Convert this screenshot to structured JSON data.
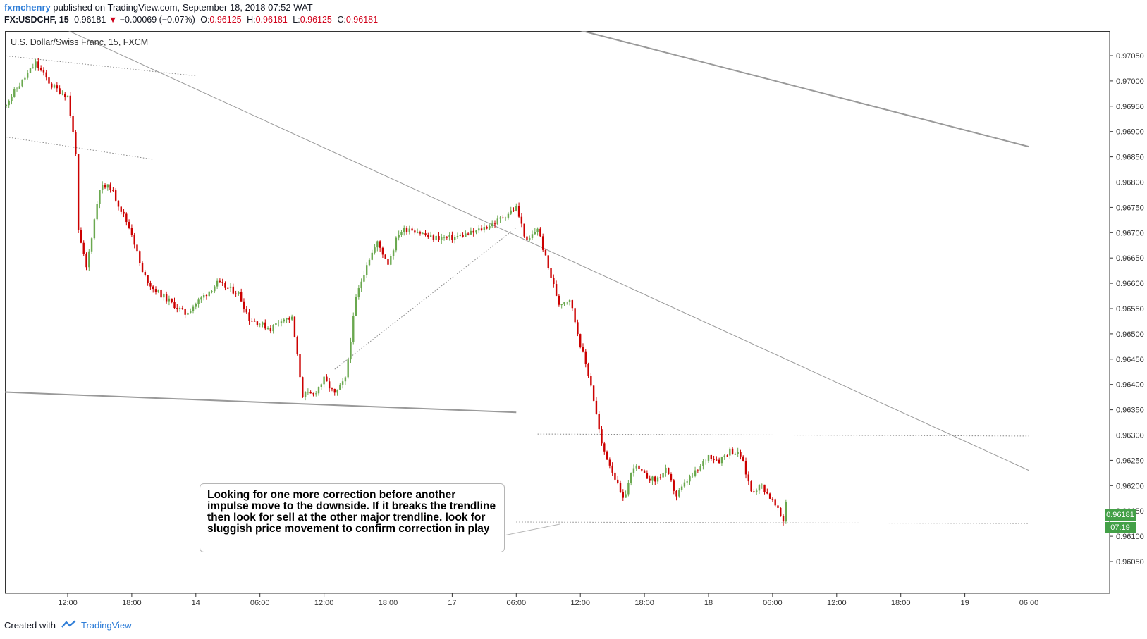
{
  "header": {
    "author": "fxmchenry",
    "published_text": "published on TradingView.com, September 18, 2018 07:52 WAT",
    "symbol": "FX:USDCHF, 15",
    "last": "0.96181",
    "change": "−0.00069 (−0.07%)",
    "open_label": "O:",
    "open": "0.96125",
    "high_label": "H:",
    "high": "0.96181",
    "low_label": "L:",
    "low": "0.96125",
    "close_label": "C:",
    "close": "0.96181"
  },
  "series_title": "U.S. Dollar/Swiss Franc, 15, FXCM",
  "annotation": {
    "text": "Looking for one more correction before another impulse move to the downside. If it breaks the trendline then look for sell at the other major trendline. look for sluggish price movement to confirm correction in play"
  },
  "price_tag": "0.96181",
  "time_tag": "07:19",
  "footer": {
    "created_with": "Created with",
    "brand": "TradingView"
  },
  "colors": {
    "up": "#6aa84f",
    "down": "#cc0000",
    "trendline": "#999999",
    "accent": "#2f7ed8",
    "tag": "#43a047"
  },
  "chart_data": {
    "type": "candlestick",
    "title": "U.S. Dollar/Swiss Franc, 15, FXCM",
    "y_ticks": [
      "0.97050",
      "0.97000",
      "0.96950",
      "0.96900",
      "0.96850",
      "0.96800",
      "0.96750",
      "0.96700",
      "0.96650",
      "0.96600",
      "0.96550",
      "0.96500",
      "0.96450",
      "0.96400",
      "0.96350",
      "0.96300",
      "0.96250",
      "0.96200",
      "0.96150",
      "0.96100",
      "0.96050"
    ],
    "ylim": [
      0.96017,
      0.97088
    ],
    "x_tick_labels": [
      "12:00",
      "18:00",
      "14",
      "06:00",
      "12:00",
      "18:00",
      "17",
      "06:00",
      "12:00",
      "18:00",
      "18",
      "06:00",
      "12:00",
      "18:00",
      "19",
      "06:00"
    ],
    "price_path": [
      [
        "13 06:00",
        0.9695
      ],
      [
        "13 09:00",
        0.97035
      ],
      [
        "13 10:30",
        0.9699
      ],
      [
        "13 12:00",
        0.9697
      ],
      [
        "13 12:45",
        0.9686
      ],
      [
        "13 13:00",
        0.967
      ],
      [
        "13 13:45",
        0.9663
      ],
      [
        "13 15:00",
        0.9679
      ],
      [
        "13 16:00",
        0.9679
      ],
      [
        "13 18:00",
        0.967
      ],
      [
        "13 19:00",
        0.9662
      ],
      [
        "13 20:00",
        0.9659
      ],
      [
        "13 23:00",
        0.9654
      ],
      [
        "14 02:00",
        0.966
      ],
      [
        "14 04:00",
        0.9658
      ],
      [
        "14 05:00",
        0.9653
      ],
      [
        "14 07:00",
        0.9651
      ],
      [
        "14 08:00",
        0.9653
      ],
      [
        "14 09:00",
        0.9653
      ],
      [
        "14 10:00",
        0.9638
      ],
      [
        "14 11:00",
        0.9638
      ],
      [
        "14 12:00",
        0.9641
      ],
      [
        "14 13:00",
        0.9638
      ],
      [
        "14 14:00",
        0.9641
      ],
      [
        "14 15:00",
        0.9657
      ],
      [
        "14 16:00",
        0.9664
      ],
      [
        "14 17:00",
        0.9668
      ],
      [
        "14 18:00",
        0.9664
      ],
      [
        "14 19:00",
        0.967
      ],
      [
        "14 20:00",
        0.9671
      ],
      [
        "14 21:00",
        0.967
      ],
      [
        "14 22:00",
        0.9669
      ],
      [
        "17 00:00",
        0.9669
      ],
      [
        "17 02:00",
        0.967
      ],
      [
        "17 04:00",
        0.9672
      ],
      [
        "17 06:00",
        0.9675
      ],
      [
        "17 07:00",
        0.9668
      ],
      [
        "17 08:00",
        0.9671
      ],
      [
        "17 09:00",
        0.9663
      ],
      [
        "17 10:00",
        0.9656
      ],
      [
        "17 11:00",
        0.9657
      ],
      [
        "17 12:00",
        0.9648
      ],
      [
        "17 13:00",
        0.964
      ],
      [
        "17 14:00",
        0.9628
      ],
      [
        "17 15:00",
        0.9623
      ],
      [
        "17 16:00",
        0.9617
      ],
      [
        "17 17:00",
        0.9624
      ],
      [
        "17 18:00",
        0.9622
      ],
      [
        "17 19:00",
        0.9621
      ],
      [
        "17 20:00",
        0.9623
      ],
      [
        "17 21:00",
        0.9618
      ],
      [
        "17 22:00",
        0.9621
      ],
      [
        "17 23:00",
        0.9623
      ],
      [
        "18 00:00",
        0.9626
      ],
      [
        "18 01:00",
        0.9625
      ],
      [
        "18 02:00",
        0.9627
      ],
      [
        "18 03:00",
        0.9626
      ],
      [
        "18 04:00",
        0.9619
      ],
      [
        "18 05:00",
        0.962
      ],
      [
        "18 06:00",
        0.9617
      ],
      [
        "18 07:00",
        0.9613
      ],
      [
        "18 07:19",
        0.96181
      ]
    ],
    "drawings": [
      {
        "name": "major-downtrend-upper",
        "from": [
          "13 12:00",
          0.971
        ],
        "to": [
          "19 06:00",
          0.9623
        ]
      },
      {
        "name": "downtrend-thick",
        "from": [
          "17 12:00",
          0.971
        ],
        "to": [
          "19 06:00",
          0.9687
        ]
      },
      {
        "name": "support-line",
        "from": [
          "13 06:00",
          0.96385
        ],
        "to": [
          "17 06:00",
          0.96345
        ]
      },
      {
        "name": "channel-top-dotted",
        "from": [
          "13 06:00",
          0.9705
        ],
        "to": [
          "14 00:00",
          0.9701
        ]
      },
      {
        "name": "channel-bottom-dotted",
        "from": [
          "13 06:00",
          0.9689
        ],
        "to": [
          "13 20:00",
          0.96845
        ]
      },
      {
        "name": "rising-dotted",
        "from": [
          "14 13:00",
          0.9643
        ],
        "to": [
          "17 06:00",
          0.9671
        ]
      },
      {
        "name": "resistance-dotted",
        "from": [
          "17 08:00",
          0.96302
        ],
        "to": [
          "19 06:00",
          0.96298
        ]
      },
      {
        "name": "support-dotted",
        "from": [
          "17 06:00",
          0.96128
        ],
        "to": [
          "19 06:00",
          0.96125
        ]
      }
    ]
  }
}
